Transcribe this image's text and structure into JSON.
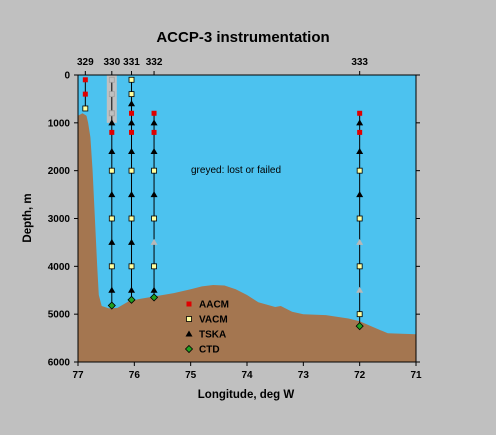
{
  "chart_data": {
    "type": "scatter",
    "title": "ACCP-3 instrumentation",
    "xlabel": "Longitude, deg W",
    "ylabel": "Depth, m",
    "xlim": [
      77,
      71
    ],
    "ylim": [
      0,
      6000
    ],
    "x_ticks": [
      77,
      76,
      75,
      74,
      73,
      72,
      71
    ],
    "y_ticks": [
      0,
      1000,
      2000,
      3000,
      4000,
      5000,
      6000
    ],
    "annotation": "greyed: lost or failed",
    "grid": false,
    "legend": [
      {
        "name": "AACM",
        "marker": "square",
        "color": "#e00000"
      },
      {
        "name": "VACM",
        "marker": "square",
        "color": "#ffffa0"
      },
      {
        "name": "TSKA",
        "marker": "triangle",
        "color": "#000000"
      },
      {
        "name": "CTD",
        "marker": "diamond",
        "color": "#20a020"
      }
    ],
    "legend_position": "lower-center",
    "colors": {
      "water": "#4cc2ef",
      "bottom": "#a47650",
      "failed": "#c0c0c0",
      "background": "#c0c0c0"
    },
    "moorings": [
      {
        "label": "329",
        "lon": 76.87,
        "bottom": 700,
        "instruments": [
          {
            "type": "AACM",
            "depth": 100
          },
          {
            "type": "AACM",
            "depth": 400
          },
          {
            "type": "VACM",
            "depth": 700
          }
        ]
      },
      {
        "label": "330",
        "lon": 76.4,
        "bottom": 4820,
        "failed_span": [
          0,
          1000
        ],
        "instruments": [
          {
            "type": "VACM",
            "depth": 100,
            "failed": true
          },
          {
            "type": "VACM",
            "depth": 400,
            "failed": true
          },
          {
            "type": "AACM",
            "depth": 800,
            "failed": true
          },
          {
            "type": "TSKA",
            "depth": 1000
          },
          {
            "type": "AACM",
            "depth": 1200
          },
          {
            "type": "TSKA",
            "depth": 1600
          },
          {
            "type": "VACM",
            "depth": 2000
          },
          {
            "type": "TSKA",
            "depth": 2500
          },
          {
            "type": "VACM",
            "depth": 3000
          },
          {
            "type": "TSKA",
            "depth": 3500
          },
          {
            "type": "VACM",
            "depth": 4000
          },
          {
            "type": "TSKA",
            "depth": 4500
          },
          {
            "type": "CTD",
            "depth": 4820
          }
        ]
      },
      {
        "label": "331",
        "lon": 76.05,
        "bottom": 4700,
        "instruments": [
          {
            "type": "VACM",
            "depth": 100
          },
          {
            "type": "VACM",
            "depth": 400
          },
          {
            "type": "TSKA",
            "depth": 600
          },
          {
            "type": "AACM",
            "depth": 800
          },
          {
            "type": "TSKA",
            "depth": 1000
          },
          {
            "type": "AACM",
            "depth": 1200
          },
          {
            "type": "TSKA",
            "depth": 1600
          },
          {
            "type": "VACM",
            "depth": 2000
          },
          {
            "type": "TSKA",
            "depth": 2500
          },
          {
            "type": "VACM",
            "depth": 3000
          },
          {
            "type": "TSKA",
            "depth": 3500
          },
          {
            "type": "VACM",
            "depth": 4000
          },
          {
            "type": "TSKA",
            "depth": 4500
          },
          {
            "type": "CTD",
            "depth": 4700
          }
        ]
      },
      {
        "label": "332",
        "lon": 75.65,
        "bottom": 4650,
        "instruments": [
          {
            "type": "AACM",
            "depth": 800
          },
          {
            "type": "TSKA",
            "depth": 1000
          },
          {
            "type": "AACM",
            "depth": 1200
          },
          {
            "type": "TSKA",
            "depth": 1600
          },
          {
            "type": "VACM",
            "depth": 2000
          },
          {
            "type": "TSKA",
            "depth": 2500
          },
          {
            "type": "VACM",
            "depth": 3000
          },
          {
            "type": "TSKA",
            "depth": 3500,
            "failed": true
          },
          {
            "type": "VACM",
            "depth": 4000
          },
          {
            "type": "TSKA",
            "depth": 4500
          },
          {
            "type": "CTD",
            "depth": 4650
          }
        ]
      },
      {
        "label": "333",
        "lon": 72.0,
        "bottom": 5250,
        "instruments": [
          {
            "type": "AACM",
            "depth": 800
          },
          {
            "type": "TSKA",
            "depth": 1000
          },
          {
            "type": "AACM",
            "depth": 1200
          },
          {
            "type": "TSKA",
            "depth": 1600
          },
          {
            "type": "VACM",
            "depth": 2000
          },
          {
            "type": "TSKA",
            "depth": 2500
          },
          {
            "type": "VACM",
            "depth": 3000
          },
          {
            "type": "TSKA",
            "depth": 3500,
            "failed": true
          },
          {
            "type": "VACM",
            "depth": 4000
          },
          {
            "type": "TSKA",
            "depth": 4500,
            "failed": true
          },
          {
            "type": "VACM",
            "depth": 5000
          },
          {
            "type": "CTD",
            "depth": 5250
          }
        ]
      }
    ],
    "bathymetry": [
      [
        77.0,
        850
      ],
      [
        76.92,
        800
      ],
      [
        76.85,
        850
      ],
      [
        76.82,
        1000
      ],
      [
        76.78,
        1300
      ],
      [
        76.74,
        2000
      ],
      [
        76.7,
        3000
      ],
      [
        76.66,
        4000
      ],
      [
        76.63,
        4600
      ],
      [
        76.58,
        4830
      ],
      [
        76.45,
        4880
      ],
      [
        76.3,
        4870
      ],
      [
        76.1,
        4730
      ],
      [
        75.9,
        4680
      ],
      [
        75.6,
        4620
      ],
      [
        75.3,
        4560
      ],
      [
        75.0,
        4480
      ],
      [
        74.8,
        4420
      ],
      [
        74.6,
        4390
      ],
      [
        74.4,
        4400
      ],
      [
        74.2,
        4480
      ],
      [
        74.0,
        4600
      ],
      [
        73.8,
        4750
      ],
      [
        73.5,
        4850
      ],
      [
        73.4,
        4830
      ],
      [
        73.2,
        4950
      ],
      [
        73.0,
        5000
      ],
      [
        72.6,
        5020
      ],
      [
        72.2,
        5090
      ],
      [
        72.0,
        5150
      ],
      [
        71.8,
        5250
      ],
      [
        71.5,
        5400
      ],
      [
        71.0,
        5420
      ]
    ]
  }
}
